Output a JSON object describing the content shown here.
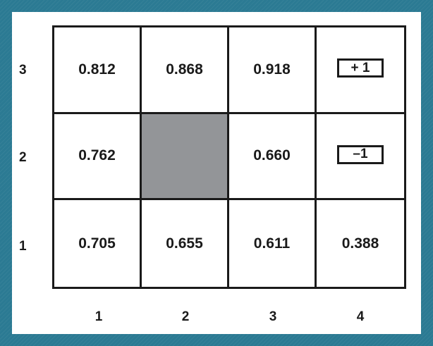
{
  "grid": {
    "rows": [
      {
        "label": "3",
        "cells": [
          {
            "value": "0.812"
          },
          {
            "value": "0.868"
          },
          {
            "value": "0.918"
          },
          {
            "value": "+ 1",
            "terminal": true
          }
        ]
      },
      {
        "label": "2",
        "cells": [
          {
            "value": "0.762"
          },
          {
            "value": "",
            "wall": true
          },
          {
            "value": "0.660"
          },
          {
            "value": "–1",
            "terminal": true
          }
        ]
      },
      {
        "label": "1",
        "cells": [
          {
            "value": "0.705"
          },
          {
            "value": "0.655"
          },
          {
            "value": "0.611"
          },
          {
            "value": "0.388"
          }
        ]
      }
    ],
    "column_labels": [
      "1",
      "2",
      "3",
      "4"
    ]
  },
  "colors": {
    "background": "#2b7a93",
    "wall": "#939598",
    "line": "#1a1a1a"
  }
}
